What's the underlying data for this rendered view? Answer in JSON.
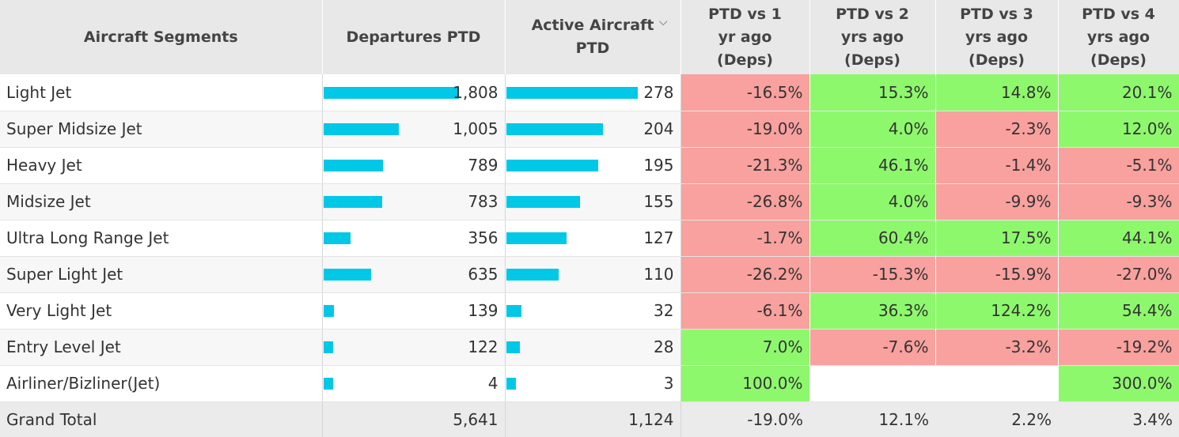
{
  "columns": {
    "segment": "Aircraft Segments",
    "departures": "Departures PTD",
    "active_line1": "Active Aircraft",
    "active_line2": "PTD",
    "vs1_line1": "PTD vs 1",
    "vs1_line2": "yr ago",
    "vs1_line3": "(Deps)",
    "vs2_line1": "PTD vs 2",
    "vs2_line2": "yrs ago",
    "vs2_line3": "(Deps)",
    "vs3_line1": "PTD vs 3",
    "vs3_line2": "yrs ago",
    "vs3_line3": "(Deps)",
    "vs4_line1": "PTD vs 4",
    "vs4_line2": "yrs ago",
    "vs4_line3": "(Deps)",
    "sort_icon": "chevron-down-icon"
  },
  "colors": {
    "bar": "#00c8e6",
    "negative": "#f8a19e",
    "positive": "#8ef86d"
  },
  "bar_max": {
    "departures": 1808,
    "active": 278
  },
  "rows": [
    {
      "name": "Light Jet",
      "departures": 1808,
      "departures_label": "1,808",
      "active": 278,
      "active_label": "278",
      "vs1": "-16.5%",
      "vs2": "15.3%",
      "vs3": "14.8%",
      "vs4": "20.1%"
    },
    {
      "name": "Super Midsize Jet",
      "departures": 1005,
      "departures_label": "1,005",
      "active": 204,
      "active_label": "204",
      "vs1": "-19.0%",
      "vs2": "4.0%",
      "vs3": "-2.3%",
      "vs4": "12.0%"
    },
    {
      "name": "Heavy Jet",
      "departures": 789,
      "departures_label": "789",
      "active": 195,
      "active_label": "195",
      "vs1": "-21.3%",
      "vs2": "46.1%",
      "vs3": "-1.4%",
      "vs4": "-5.1%"
    },
    {
      "name": "Midsize Jet",
      "departures": 783,
      "departures_label": "783",
      "active": 155,
      "active_label": "155",
      "vs1": "-26.8%",
      "vs2": "4.0%",
      "vs3": "-9.9%",
      "vs4": "-9.3%"
    },
    {
      "name": "Ultra Long Range Jet",
      "departures": 356,
      "departures_label": "356",
      "active": 127,
      "active_label": "127",
      "vs1": "-1.7%",
      "vs2": "60.4%",
      "vs3": "17.5%",
      "vs4": "44.1%"
    },
    {
      "name": "Super Light Jet",
      "departures": 635,
      "departures_label": "635",
      "active": 110,
      "active_label": "110",
      "vs1": "-26.2%",
      "vs2": "-15.3%",
      "vs3": "-15.9%",
      "vs4": "-27.0%"
    },
    {
      "name": "Very Light Jet",
      "departures": 139,
      "departures_label": "139",
      "active": 32,
      "active_label": "32",
      "vs1": "-6.1%",
      "vs2": "36.3%",
      "vs3": "124.2%",
      "vs4": "54.4%"
    },
    {
      "name": "Entry Level Jet",
      "departures": 122,
      "departures_label": "122",
      "active": 28,
      "active_label": "28",
      "vs1": "7.0%",
      "vs2": "-7.6%",
      "vs3": "-3.2%",
      "vs4": "-19.2%"
    },
    {
      "name": "Airliner/Bizliner(Jet)",
      "departures": 4,
      "departures_label": "4",
      "active": 3,
      "active_label": "3",
      "vs1": "100.0%",
      "vs2": "",
      "vs3": "",
      "vs4": "300.0%"
    }
  ],
  "total": {
    "name": "Grand Total",
    "departures": "5,641",
    "active": "1,124",
    "vs1": "-19.0%",
    "vs2": "12.1%",
    "vs3": "2.2%",
    "vs4": "3.4%"
  }
}
